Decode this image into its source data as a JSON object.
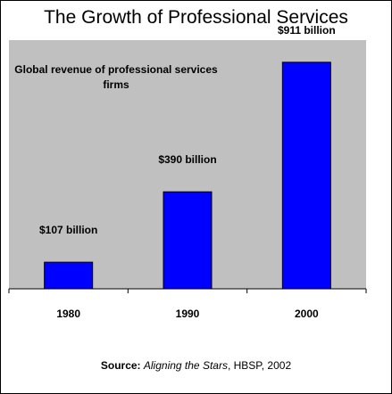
{
  "chart_data": {
    "type": "bar",
    "title": "The Growth of Professional Services",
    "subtitle": "Global revenue of professional services firms",
    "categories": [
      "1980",
      "1990",
      "2000"
    ],
    "values": [
      107,
      390,
      911
    ],
    "data_labels": [
      "$107 billion",
      "$390 billion",
      "$911 billion"
    ],
    "ylim": [
      0,
      1000
    ],
    "grid": false,
    "legend": "none",
    "colors": {
      "bar": "#0000ff",
      "plot_bg": "#c0c0c0",
      "bar_stroke": "#000000"
    }
  },
  "source": {
    "label": "Source:",
    "title": "Aligning the Stars",
    "rest": ", HBSP, 2002"
  }
}
